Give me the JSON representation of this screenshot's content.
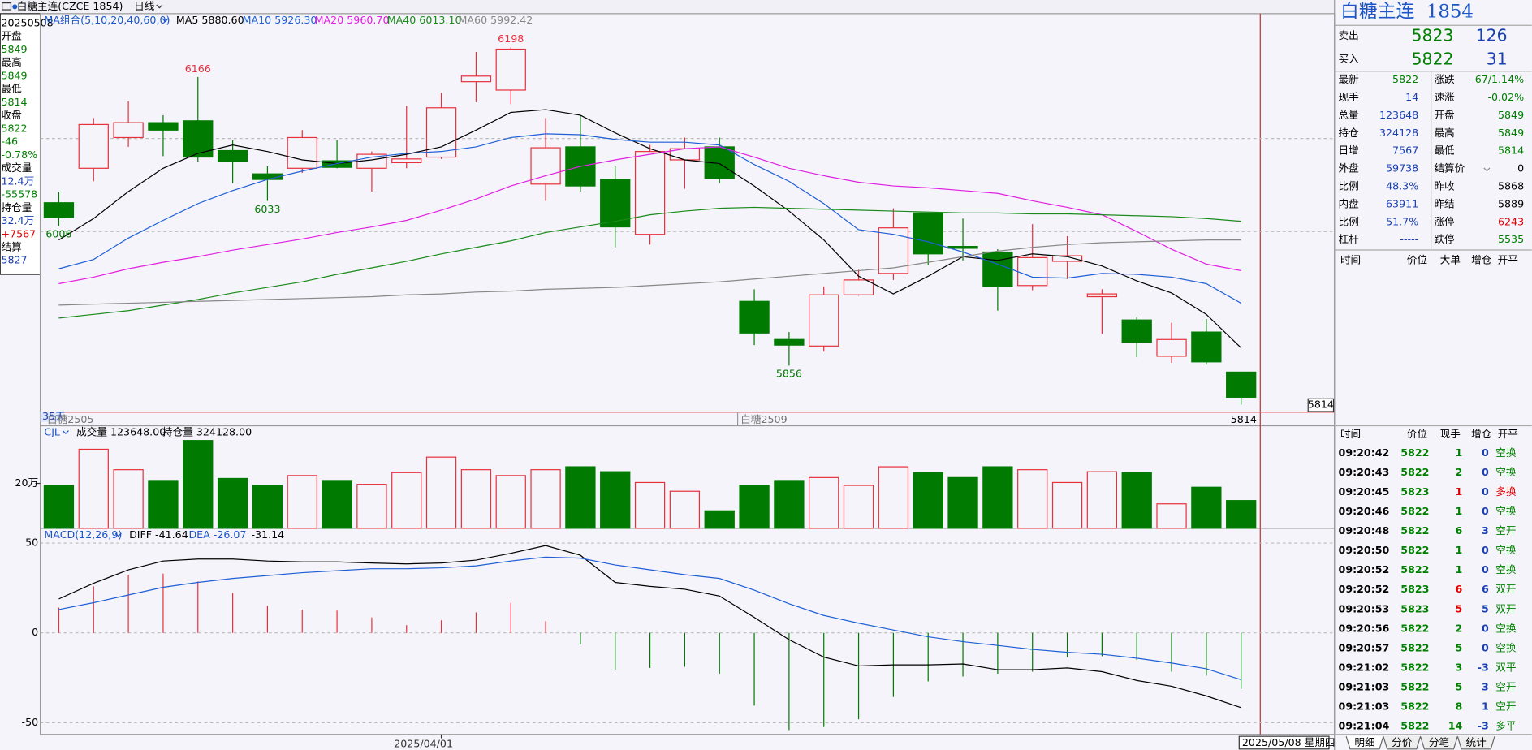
{
  "window": {
    "title": "白糖主连(CZCE 1854)",
    "period": "日线"
  },
  "info_panel": {
    "items": [
      {
        "text": "20250508",
        "color": "#000000"
      },
      {
        "text": "开盘",
        "color": "#000000"
      },
      {
        "text": "5849",
        "color": "#008000"
      },
      {
        "text": "最高",
        "color": "#000000"
      },
      {
        "text": "5849",
        "color": "#008000"
      },
      {
        "text": "最低",
        "color": "#000000"
      },
      {
        "text": "5814",
        "color": "#008000"
      },
      {
        "text": "收盘",
        "color": "#000000"
      },
      {
        "text": "5822",
        "color": "#008000"
      },
      {
        "text": "-46",
        "color": "#008000"
      },
      {
        "text": "-0.78%",
        "color": "#008000"
      },
      {
        "text": "成交量",
        "color": "#000000"
      },
      {
        "text": "12.4万",
        "color": "#1a3fb0"
      },
      {
        "text": "-55578",
        "color": "#008000"
      },
      {
        "text": "持仓量",
        "color": "#000000"
      },
      {
        "text": "32.4万",
        "color": "#1a3fb0"
      },
      {
        "text": "+7567",
        "color": "#e00000"
      },
      {
        "text": "结算",
        "color": "#000000"
      },
      {
        "text": "5827",
        "color": "#1a3fb0"
      }
    ]
  },
  "main_chart": {
    "legend": [
      {
        "text": "MA组合(5,10,20,40,60,0)",
        "color": "#1a56c8"
      },
      {
        "text": "MA5 5880.60",
        "color": "#000000"
      },
      {
        "text": "MA10 5926.30",
        "color": "#1f5fd6"
      },
      {
        "text": "MA20 5960.70",
        "color": "#e020e0"
      },
      {
        "text": "MA40 6013.10",
        "color": "#1a8a1a"
      },
      {
        "text": "MA60 5992.42",
        "color": "#888888"
      }
    ],
    "ylim": [
      5806,
      6232
    ],
    "grid": [
      6000,
      6100
    ],
    "up_color": "#e8303b",
    "down_color": "#007a00",
    "candles": {
      "open": [
        6031,
        6068,
        6101,
        6117,
        6119,
        6087,
        6062,
        6068,
        6076,
        6068,
        6074,
        6080,
        6161,
        6152,
        6051,
        6091,
        6056,
        5997,
        6077,
        6091,
        5925,
        5884,
        5877,
        5932,
        5955,
        6020,
        5984,
        5978,
        5942,
        5968,
        5930,
        5905,
        5866,
        5892,
        5849
      ],
      "high": [
        6043,
        6122,
        6140,
        6125,
        6166,
        6098,
        6070,
        6109,
        6098,
        6086,
        6135,
        6149,
        6193,
        6198,
        6122,
        6125,
        6070,
        6093,
        6101,
        6101,
        5938,
        5892,
        5941,
        5959,
        6025,
        6020,
        6014,
        5981,
        6008,
        5995,
        5938,
        5908,
        5902,
        5906,
        5849
      ],
      "low": [
        6006,
        6054,
        6091,
        6081,
        6075,
        6052,
        6033,
        6063,
        6068,
        6043,
        6068,
        6078,
        6139,
        6137,
        6033,
        6043,
        5983,
        5986,
        6046,
        6052,
        5878,
        5856,
        5871,
        5931,
        5948,
        5964,
        5969,
        5915,
        5937,
        5949,
        5890,
        5865,
        5859,
        5857,
        5814
      ],
      "close": [
        6015,
        6115,
        6117,
        6109,
        6080,
        6075,
        6056,
        6101,
        6069,
        6083,
        6078,
        6133,
        6167,
        6196,
        6090,
        6049,
        6005,
        6086,
        6089,
        6057,
        5891,
        5878,
        5932,
        5948,
        6004,
        5976,
        5982,
        5941,
        5972,
        5974,
        5933,
        5881,
        5884,
        5860,
        5822
      ]
    },
    "ma": [
      {
        "color": "#000000",
        "values": [
          5991,
          6014,
          6043,
          6068,
          6084,
          6093,
          6086,
          6077,
          6073,
          6077,
          6083,
          6091,
          6109,
          6128,
          6131,
          6125,
          6106,
          6089,
          6077,
          6073,
          6049,
          6022,
          5991,
          5952,
          5933,
          5952,
          5973,
          5969,
          5976,
          5973,
          5963,
          5947,
          5934,
          5911,
          5875
        ]
      },
      {
        "color": "#1f5fd6",
        "values": [
          5960,
          5970,
          5993,
          6012,
          6030,
          6044,
          6056,
          6065,
          6073,
          6080,
          6084,
          6086,
          6091,
          6101,
          6105,
          6104,
          6099,
          6096,
          6096,
          6093,
          6072,
          6054,
          6030,
          6002,
          5997,
          5989,
          5978,
          5965,
          5951,
          5950,
          5955,
          5954,
          5951,
          5944,
          5923
        ]
      },
      {
        "color": "#e020e0",
        "values": [
          5944,
          5951,
          5960,
          5967,
          5973,
          5980,
          5986,
          5992,
          5999,
          6005,
          6012,
          6023,
          6035,
          6049,
          6060,
          6070,
          6077,
          6083,
          6089,
          6091,
          6080,
          6068,
          6060,
          6053,
          6049,
          6047,
          6044,
          6041,
          6033,
          6026,
          6018,
          6000,
          5981,
          5965,
          5958
        ]
      },
      {
        "color": "#1a8a1a",
        "values": [
          5907,
          5911,
          5915,
          5921,
          5927,
          5934,
          5940,
          5946,
          5954,
          5961,
          5968,
          5976,
          5983,
          5990,
          5999,
          6005,
          6011,
          6018,
          6022,
          6025,
          6026,
          6025,
          6024,
          6023,
          6022,
          6021,
          6020,
          6020,
          6019,
          6019,
          6018,
          6017,
          6016,
          6014,
          6011
        ]
      },
      {
        "color": "#888888",
        "values": [
          5921,
          5922,
          5923,
          5924,
          5925,
          5926,
          5927,
          5928,
          5929,
          5930,
          5932,
          5933,
          5935,
          5936,
          5938,
          5939,
          5940,
          5942,
          5944,
          5946,
          5949,
          5952,
          5955,
          5958,
          5961,
          5967,
          5973,
          5979,
          5983,
          5986,
          5988,
          5989,
          5990,
          5991,
          5991
        ]
      }
    ],
    "period_label": "35天",
    "contracts": [
      "白糖2505",
      "白糖2509"
    ]
  },
  "dates": [
    null,
    null,
    null,
    null,
    null,
    null,
    null,
    null,
    null,
    null,
    null,
    "2025/04/01",
    null,
    null,
    null,
    null,
    null,
    null,
    null,
    null,
    null,
    null,
    null,
    null,
    null,
    null,
    null,
    null,
    null,
    null,
    null,
    null,
    null,
    null,
    "2025/05/08 星期四"
  ],
  "volume_chart": {
    "legend": [
      {
        "text": "CJL",
        "color": "#1a56c8"
      },
      {
        "text": "成交量 123648.00",
        "color": "#000000"
      },
      {
        "text": "持仓量 324128.00",
        "color": "#000000"
      }
    ],
    "ylim": [
      0,
      456500
    ],
    "yticks": [
      {
        "value": 200000,
        "label": "20万"
      }
    ],
    "values": [
      191000,
      352000,
      261000,
      213000,
      391000,
      222000,
      191000,
      235000,
      213000,
      196000,
      248000,
      317000,
      261000,
      235000,
      261000,
      274000,
      252000,
      204000,
      165000,
      78000,
      191000,
      213000,
      226000,
      191000,
      274000,
      248000,
      226000,
      274000,
      261000,
      204000,
      252000,
      248000,
      109000,
      183000,
      123648
    ]
  },
  "macd_chart": {
    "legend": [
      {
        "text": "MACD(12,26,9)",
        "color": "#1a56c8"
      },
      {
        "text": "DIFF -41.64",
        "color": "#000000"
      },
      {
        "text": "DEA -26.07",
        "color": "#1a56c8"
      },
      {
        "text": "-31.14",
        "color": "#000000"
      }
    ],
    "ylim": [
      -56.5,
      58.2
    ],
    "yticks": [
      -50,
      0,
      50
    ],
    "macd": [
      14.1,
      25.9,
      32.4,
      33.0,
      28.6,
      22.2,
      15.1,
      13.0,
      12.4,
      8.6,
      4.3,
      7.0,
      11.4,
      16.8,
      6.5,
      -6.5,
      -20.5,
      -19.5,
      -18.9,
      -22.7,
      -40.5,
      -54.1,
      -52.4,
      -48.1,
      -35.7,
      -27.0,
      -24.3,
      -22.7,
      -21.6,
      -13.5,
      -13.0,
      -15.1,
      -21.6,
      -23.8,
      -31.14
    ],
    "diff": [
      18.9,
      27.6,
      35.1,
      40.0,
      41.1,
      41.1,
      40.0,
      39.5,
      39.5,
      38.9,
      38.4,
      38.9,
      40.5,
      44.3,
      48.6,
      43.2,
      28.1,
      25.9,
      24.3,
      20.5,
      8.6,
      -3.8,
      -13.5,
      -18.4,
      -17.8,
      -17.8,
      -17.3,
      -20.5,
      -20.5,
      -19.5,
      -21.6,
      -26.5,
      -29.7,
      -35.1,
      -41.64
    ],
    "dea": [
      13.0,
      16.8,
      21.1,
      25.4,
      28.1,
      30.3,
      31.9,
      33.5,
      34.6,
      35.7,
      35.7,
      36.2,
      37.3,
      40.0,
      42.2,
      41.6,
      37.8,
      35.1,
      32.4,
      30.3,
      23.8,
      16.2,
      9.7,
      5.4,
      1.6,
      -2.2,
      -4.9,
      -7.0,
      -9.2,
      -10.8,
      -11.9,
      -14.1,
      -16.8,
      -20.0,
      -26.07
    ],
    "diff_color": "#000000",
    "dea_color": "#1f5fd6"
  },
  "quote_panel": {
    "title": "白糖主连",
    "code": "1854",
    "ask": {
      "label": "卖出",
      "price": "5823",
      "volume": "126"
    },
    "bid": {
      "label": "买入",
      "price": "5822",
      "volume": "31"
    },
    "stats": [
      [
        {
          "label": "最新",
          "value": "5822",
          "color": "#008000"
        },
        {
          "label": "涨跌",
          "value": "-67/1.14%",
          "color": "#008000"
        }
      ],
      [
        {
          "label": "现手",
          "value": "14",
          "color": "#1a3fb0"
        },
        {
          "label": "速涨",
          "value": "-0.02%",
          "color": "#008000"
        }
      ],
      [
        {
          "label": "总量",
          "value": "123648",
          "color": "#1a3fb0"
        },
        {
          "label": "开盘",
          "value": "5849",
          "color": "#008000"
        }
      ],
      [
        {
          "label": "持仓",
          "value": "324128",
          "color": "#1a3fb0"
        },
        {
          "label": "最高",
          "value": "5849",
          "color": "#008000"
        }
      ],
      [
        {
          "label": "日增",
          "value": "7567",
          "color": "#1a3fb0"
        },
        {
          "label": "最低",
          "value": "5814",
          "color": "#008000"
        }
      ],
      [
        {
          "label": "外盘",
          "value": "59738",
          "color": "#1a3fb0"
        },
        {
          "label": "结算价",
          "value": "0",
          "color": "#000000"
        }
      ],
      [
        {
          "label": "比例",
          "value": "48.3%",
          "color": "#1a3fb0"
        },
        {
          "label": "昨收",
          "value": "5868",
          "color": "#000000"
        }
      ],
      [
        {
          "label": "内盘",
          "value": "63911",
          "color": "#1a3fb0"
        },
        {
          "label": "昨结",
          "value": "5889",
          "color": "#000000"
        }
      ],
      [
        {
          "label": "比例",
          "value": "51.7%",
          "color": "#1a3fb0"
        },
        {
          "label": "涨停",
          "value": "6243",
          "color": "#e00000"
        }
      ],
      [
        {
          "label": "杠杆",
          "value": "-----",
          "color": "#1a3fb0"
        },
        {
          "label": "跌停",
          "value": "5535",
          "color": "#008000"
        }
      ]
    ],
    "big_header": [
      "时间",
      "价位",
      "大单",
      "增仓",
      "开平"
    ],
    "trade_header": [
      "时间",
      "价位",
      "现手",
      "增仓",
      "开平"
    ],
    "trades": [
      {
        "time": "09:20:42",
        "price": "5822",
        "hand": "1",
        "oi": "0",
        "type": "空换",
        "hand_color": "#008000",
        "type_color": "#008000"
      },
      {
        "time": "09:20:43",
        "price": "5822",
        "hand": "2",
        "oi": "0",
        "type": "空换",
        "hand_color": "#008000",
        "type_color": "#008000"
      },
      {
        "time": "09:20:45",
        "price": "5823",
        "hand": "1",
        "oi": "0",
        "type": "多换",
        "hand_color": "#e00000",
        "type_color": "#e00000"
      },
      {
        "time": "09:20:46",
        "price": "5822",
        "hand": "1",
        "oi": "0",
        "type": "空换",
        "hand_color": "#008000",
        "type_color": "#008000"
      },
      {
        "time": "09:20:48",
        "price": "5822",
        "hand": "6",
        "oi": "3",
        "type": "空开",
        "hand_color": "#008000",
        "type_color": "#008000"
      },
      {
        "time": "09:20:50",
        "price": "5822",
        "hand": "1",
        "oi": "0",
        "type": "空换",
        "hand_color": "#008000",
        "type_color": "#008000"
      },
      {
        "time": "09:20:52",
        "price": "5822",
        "hand": "1",
        "oi": "0",
        "type": "空换",
        "hand_color": "#008000",
        "type_color": "#008000"
      },
      {
        "time": "09:20:52",
        "price": "5823",
        "hand": "6",
        "oi": "6",
        "type": "双开",
        "hand_color": "#e00000",
        "type_color": "#008000"
      },
      {
        "time": "09:20:53",
        "price": "5823",
        "hand": "5",
        "oi": "5",
        "type": "双开",
        "hand_color": "#e00000",
        "type_color": "#008000"
      },
      {
        "time": "09:20:56",
        "price": "5822",
        "hand": "2",
        "oi": "0",
        "type": "空换",
        "hand_color": "#008000",
        "type_color": "#008000"
      },
      {
        "time": "09:20:57",
        "price": "5822",
        "hand": "5",
        "oi": "0",
        "type": "空换",
        "hand_color": "#008000",
        "type_color": "#008000"
      },
      {
        "time": "09:21:02",
        "price": "5822",
        "hand": "3",
        "oi": "-3",
        "type": "双平",
        "hand_color": "#008000",
        "type_color": "#008000"
      },
      {
        "time": "09:21:03",
        "price": "5822",
        "hand": "5",
        "oi": "3",
        "type": "空开",
        "hand_color": "#008000",
        "type_color": "#008000"
      },
      {
        "time": "09:21:03",
        "price": "5822",
        "hand": "8",
        "oi": "1",
        "type": "空开",
        "hand_color": "#008000",
        "type_color": "#008000"
      },
      {
        "time": "09:21:04",
        "price": "5822",
        "hand": "14",
        "oi": "-3",
        "type": "多平",
        "hand_color": "#008000",
        "type_color": "#008000"
      }
    ],
    "tabs": [
      "明细",
      "分价",
      "分笔",
      "统计"
    ]
  }
}
